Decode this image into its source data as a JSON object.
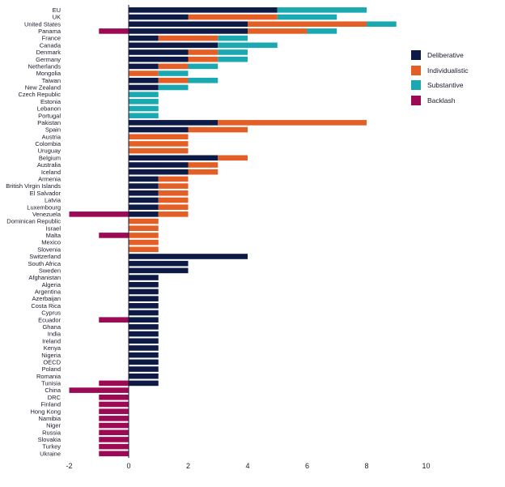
{
  "chart_data": {
    "type": "bar",
    "orientation": "horizontal",
    "stacked": true,
    "xlim": [
      -2,
      10
    ],
    "xticks": [
      -2,
      0,
      2,
      4,
      6,
      8,
      10
    ],
    "legend_position": "right",
    "grid": false,
    "categories": [
      "EU",
      "UK",
      "United States",
      "Panama",
      "France",
      "Canada",
      "Denmark",
      "Germany",
      "Netherlands",
      "Mongolia",
      "Taiwan",
      "New Zealand",
      "Czech Republic",
      "Estonia",
      "Lebanon",
      "Portugal",
      "Pakistan",
      "Spain",
      "Austria",
      "Colombia",
      "Uruguay",
      "Belgium",
      "Australia",
      "Iceland",
      "Armenia",
      "British Virgin Islands",
      "El Salvador",
      "Latvia",
      "Luxembourg",
      "Venezuela",
      "Dominican Republic",
      "Israel",
      "Malta",
      "Mexico",
      "Slovenia",
      "Switzerland",
      "South Africa",
      "Sweden",
      "Afghanistan",
      "Algeria",
      "Argentina",
      "Azerbaijan",
      "Costa Rica",
      "Cyprus",
      "Ecuador",
      "Ghana",
      "India",
      "Ireland",
      "Kenya",
      "Nigeria",
      "OECD",
      "Poland",
      "Romania",
      "Tunisia",
      "China",
      "DRC",
      "Finland",
      "Hong Kong",
      "Namibia",
      "Niger",
      "Russia",
      "Slovakia",
      "Turkey",
      "Ukraine"
    ],
    "series": [
      {
        "name": "Deliberative",
        "color": "#0d1a45",
        "values": [
          5,
          2,
          4,
          4,
          1,
          3,
          2,
          2,
          1,
          0,
          1,
          1,
          0,
          0,
          0,
          0,
          3,
          2,
          0,
          0,
          0,
          3,
          2,
          2,
          1,
          1,
          1,
          1,
          1,
          1,
          0,
          0,
          0,
          0,
          0,
          4,
          2,
          2,
          1,
          1,
          1,
          1,
          1,
          1,
          1,
          1,
          1,
          1,
          1,
          1,
          1,
          1,
          1,
          1,
          0,
          0,
          0,
          0,
          0,
          0,
          0,
          0,
          0,
          0
        ]
      },
      {
        "name": "Individualistic",
        "color": "#e35f25",
        "values": [
          0,
          3,
          4,
          2,
          2,
          0,
          1,
          1,
          1,
          1,
          1,
          0,
          0,
          0,
          0,
          0,
          5,
          2,
          2,
          2,
          2,
          1,
          1,
          1,
          1,
          1,
          1,
          1,
          1,
          1,
          1,
          1,
          1,
          1,
          1,
          0,
          0,
          0,
          0,
          0,
          0,
          0,
          0,
          0,
          0,
          0,
          0,
          0,
          0,
          0,
          0,
          0,
          0,
          0,
          0,
          0,
          0,
          0,
          0,
          0,
          0,
          0,
          0,
          0
        ]
      },
      {
        "name": "Substantive",
        "color": "#1ba9b1",
        "values": [
          3,
          2,
          1,
          1,
          1,
          2,
          1,
          1,
          1,
          1,
          1,
          1,
          1,
          1,
          1,
          1,
          0,
          0,
          0,
          0,
          0,
          0,
          0,
          0,
          0,
          0,
          0,
          0,
          0,
          0,
          0,
          0,
          0,
          0,
          0,
          0,
          0,
          0,
          0,
          0,
          0,
          0,
          0,
          0,
          0,
          0,
          0,
          0,
          0,
          0,
          0,
          0,
          0,
          0,
          0,
          0,
          0,
          0,
          0,
          0,
          0,
          0,
          0,
          0
        ]
      },
      {
        "name": "Backlash",
        "color": "#9c0a55",
        "values": [
          0,
          0,
          0,
          -1,
          0,
          0,
          0,
          0,
          0,
          0,
          0,
          0,
          0,
          0,
          0,
          0,
          0,
          0,
          0,
          0,
          0,
          0,
          0,
          0,
          0,
          0,
          0,
          0,
          0,
          -2,
          0,
          0,
          -1,
          0,
          0,
          0,
          0,
          0,
          0,
          0,
          0,
          0,
          0,
          0,
          -1,
          0,
          0,
          0,
          0,
          0,
          0,
          0,
          0,
          -1,
          -2,
          -1,
          -1,
          -1,
          -1,
          -1,
          -1,
          -1,
          -1,
          -1
        ]
      }
    ]
  }
}
